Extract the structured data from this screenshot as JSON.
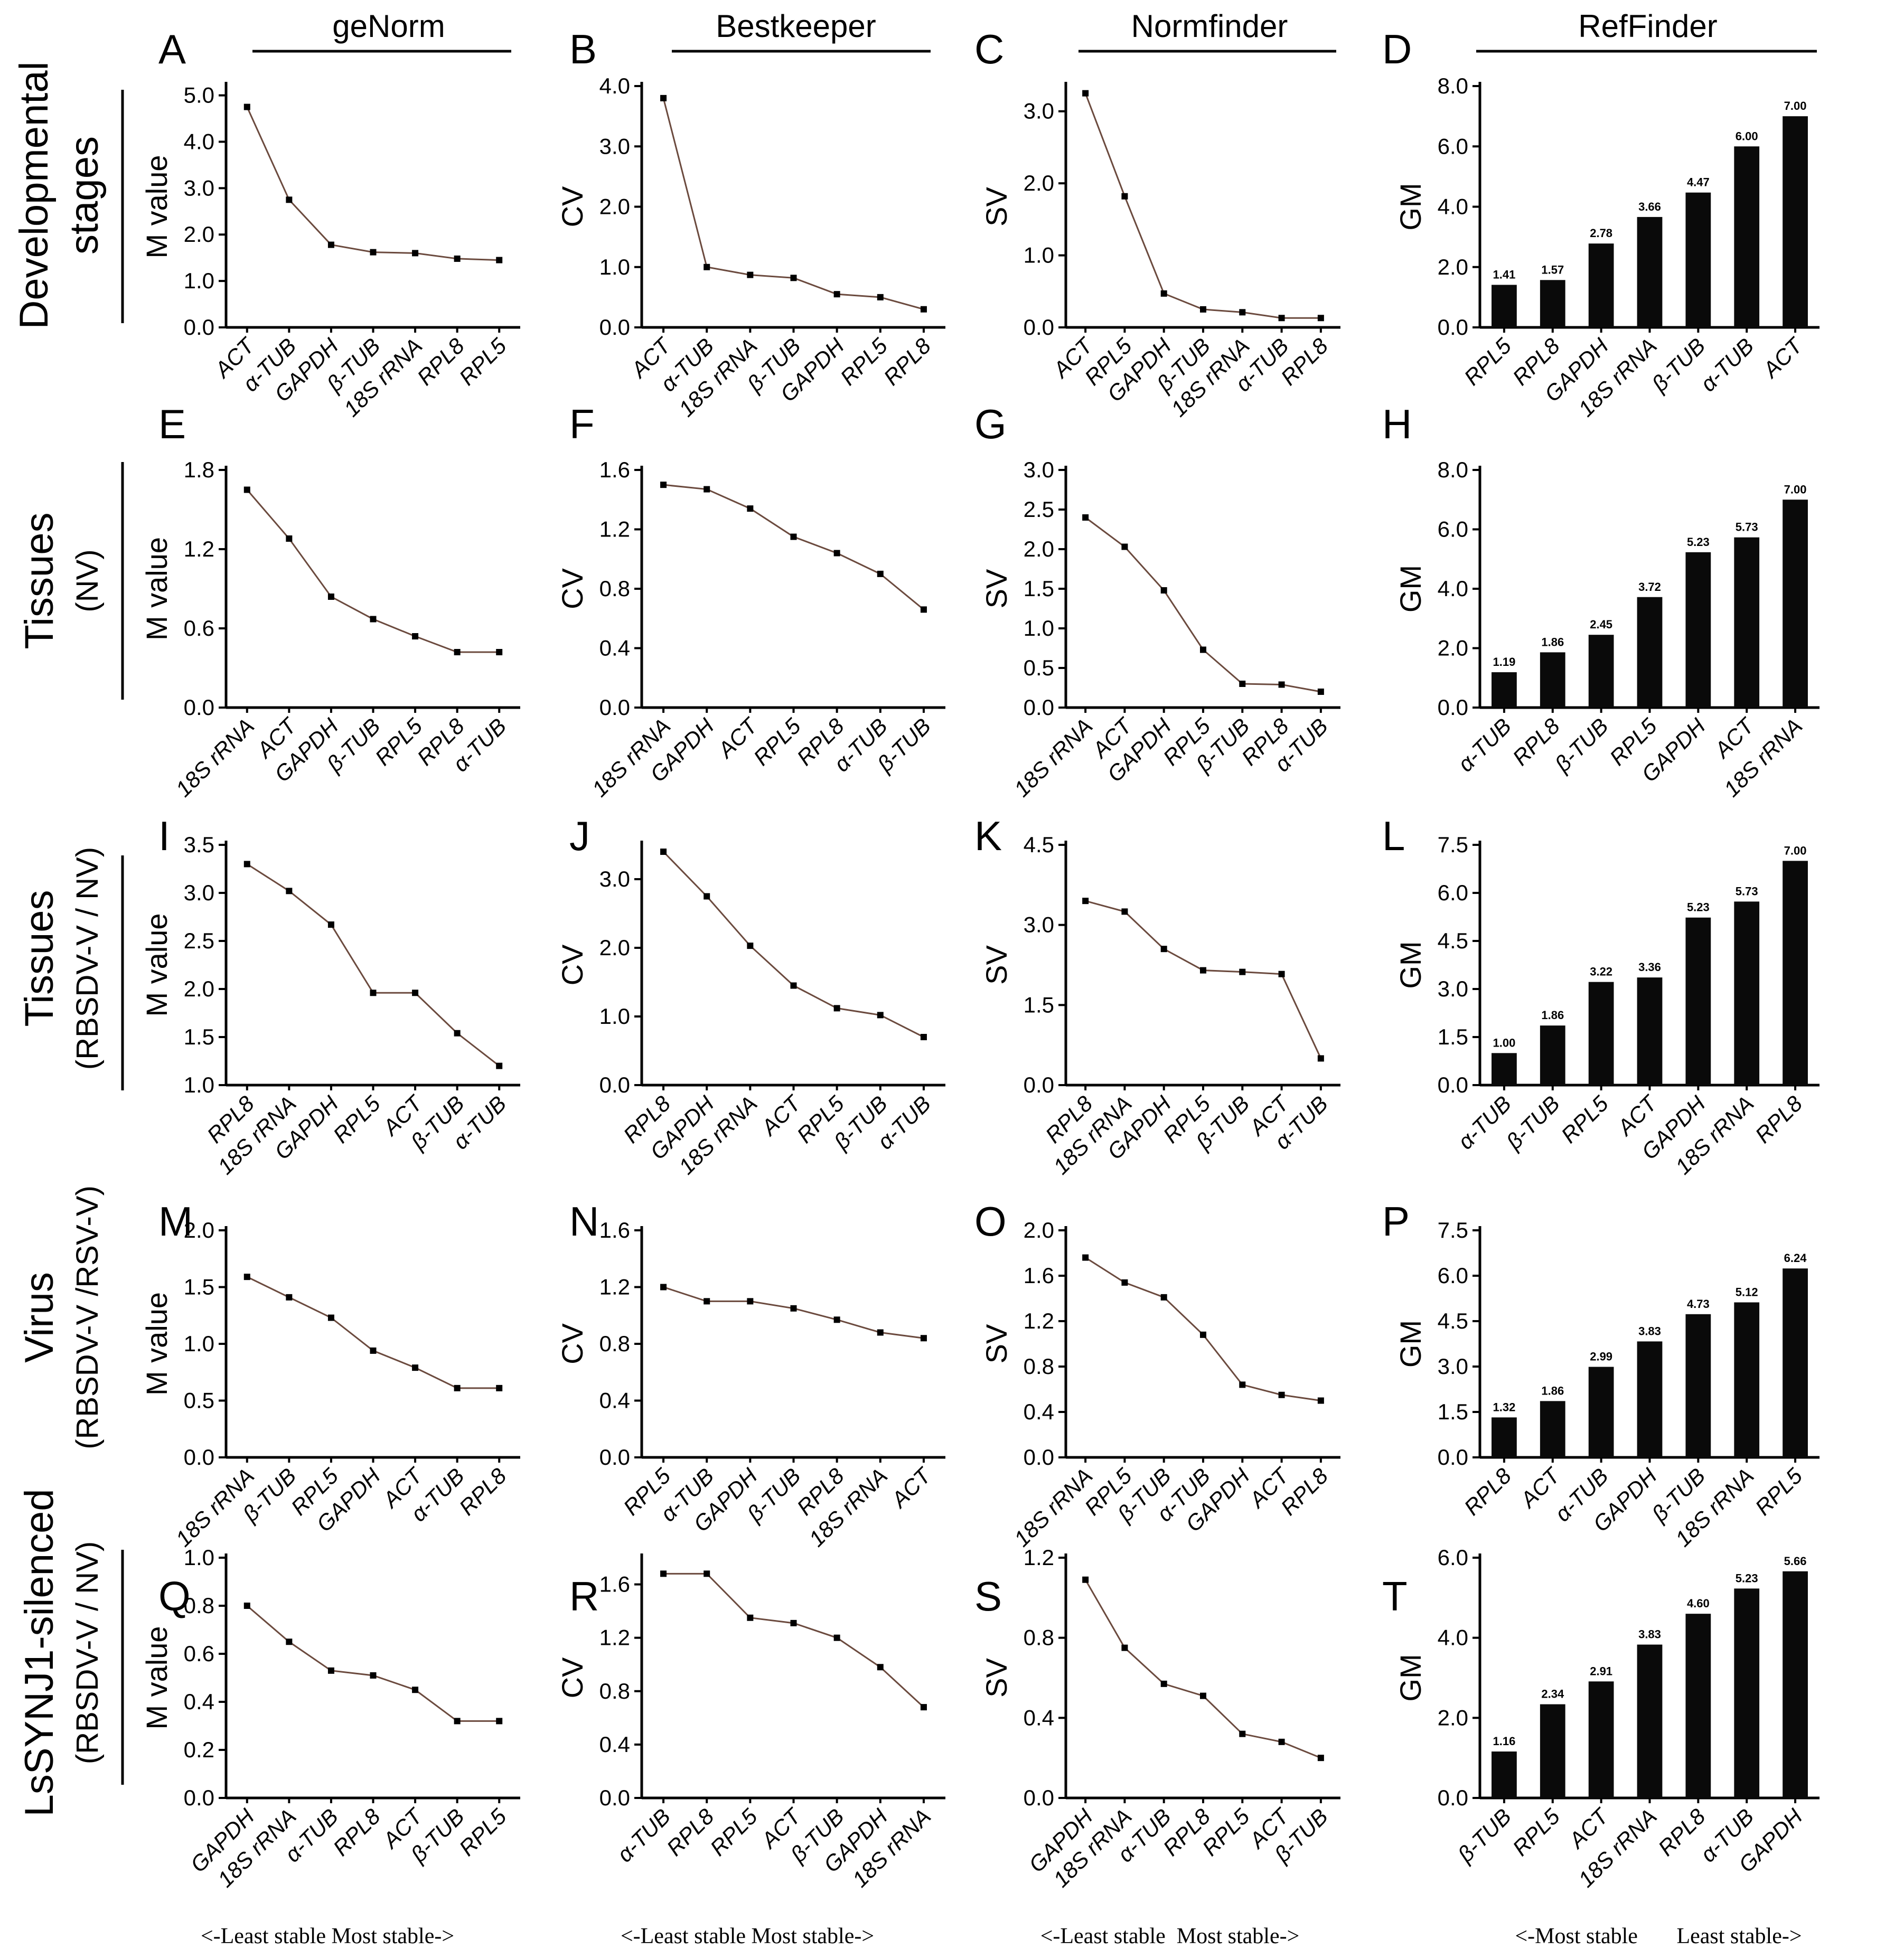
{
  "columns": [
    {
      "title": "geNorm"
    },
    {
      "title": "Bestkeeper"
    },
    {
      "title": "Normfinder"
    },
    {
      "title": "RefFinder"
    }
  ],
  "rows": [
    {
      "title": "Developmental",
      "subtitle": "stages"
    },
    {
      "title": "Tissues",
      "subtitle": "(NV)"
    },
    {
      "title": "Tissues",
      "subtitle": "(RBSDV-V / NV)"
    },
    {
      "title": "Virus",
      "subtitle": "(RBSDV-V /RSV-V)"
    },
    {
      "title": "LsSYNJ1-silenced",
      "subtitle": "(RBSDV-V / NV)"
    }
  ],
  "footers": [
    "<-Least stable  Most stable->",
    "<-Least stable  Most stable->",
    "<-Least stable  Most stable->",
    "<-Most stable       Least stable->"
  ],
  "chart_data": [
    {
      "panel": "A",
      "type": "line",
      "ylabel": "M value",
      "ylim": [
        0,
        5.2
      ],
      "yticks": [
        "0.0",
        "1.0",
        "2.0",
        "3.0",
        "4.0",
        "5.0"
      ],
      "categories": [
        "ACT",
        "α-TUB",
        "GAPDH",
        "β-TUB",
        "18S rRNA",
        "RPL8",
        "RPL5"
      ],
      "values": [
        4.75,
        2.75,
        1.78,
        1.62,
        1.6,
        1.48,
        1.45
      ]
    },
    {
      "panel": "B",
      "type": "line",
      "ylabel": "CV",
      "ylim": [
        0,
        4.0
      ],
      "yticks": [
        "0.0",
        "1.0",
        "2.0",
        "3.0",
        "4.0"
      ],
      "categories": [
        "ACT",
        "α-TUB",
        "18S rRNA",
        "β-TUB",
        "GAPDH",
        "RPL5",
        "RPL8"
      ],
      "values": [
        3.8,
        1.0,
        0.87,
        0.82,
        0.55,
        0.5,
        0.3
      ]
    },
    {
      "panel": "C",
      "type": "line",
      "ylabel": "SV",
      "ylim": [
        0,
        3.35
      ],
      "yticks": [
        "0.0",
        "1.0",
        "2.0",
        "3.0"
      ],
      "categories": [
        "ACT",
        "RPL5",
        "GAPDH",
        "β-TUB",
        "18S rRNA",
        "α-TUB",
        "RPL8"
      ],
      "values": [
        3.25,
        1.82,
        0.47,
        0.25,
        0.21,
        0.13,
        0.13
      ]
    },
    {
      "panel": "D",
      "type": "bar",
      "ylabel": "GM",
      "ylim": [
        0,
        8.0
      ],
      "yticks": [
        "0.0",
        "2.0",
        "4.0",
        "6.0",
        "8.0"
      ],
      "categories": [
        "RPL5",
        "RPL8",
        "GAPDH",
        "18S rRNA",
        "β-TUB",
        "α-TUB",
        "ACT"
      ],
      "values": [
        1.41,
        1.57,
        2.78,
        3.66,
        4.47,
        6.0,
        7.0
      ],
      "labels": [
        "1.41",
        "1.57",
        "2.78",
        "3.66",
        "4.47",
        "6.00",
        "7.00"
      ]
    },
    {
      "panel": "E",
      "type": "line",
      "ylabel": "M value",
      "ylim": [
        0,
        1.8
      ],
      "yticks": [
        "0.0",
        "0.6",
        "1.2",
        "1.8"
      ],
      "categories": [
        "18S rRNA",
        "ACT",
        "GAPDH",
        "β-TUB",
        "RPL5",
        "RPL8",
        "α-TUB"
      ],
      "values": [
        1.65,
        1.28,
        0.84,
        0.67,
        0.54,
        0.42,
        0.42
      ]
    },
    {
      "panel": "F",
      "type": "line",
      "ylabel": "CV",
      "ylim": [
        0,
        1.6
      ],
      "yticks": [
        "0.0",
        "0.4",
        "0.8",
        "1.2",
        "1.6"
      ],
      "categories": [
        "18S rRNA",
        "GAPDH",
        "ACT",
        "RPL5",
        "RPL8",
        "α-TUB",
        "β-TUB"
      ],
      "values": [
        1.5,
        1.47,
        1.34,
        1.15,
        1.04,
        0.9,
        0.66
      ]
    },
    {
      "panel": "G",
      "type": "line",
      "ylabel": "SV",
      "ylim": [
        0,
        3.0
      ],
      "yticks": [
        "0.0",
        "0.5",
        "1.0",
        "1.5",
        "2.0",
        "2.5",
        "3.0"
      ],
      "categories": [
        "18S rRNA",
        "ACT",
        "GAPDH",
        "RPL5",
        "β-TUB",
        "RPL8",
        "α-TUB"
      ],
      "values": [
        2.4,
        2.03,
        1.48,
        0.73,
        0.3,
        0.29,
        0.2
      ]
    },
    {
      "panel": "H",
      "type": "bar",
      "ylabel": "GM",
      "ylim": [
        0,
        8.0
      ],
      "yticks": [
        "0.0",
        "2.0",
        "4.0",
        "6.0",
        "8.0"
      ],
      "categories": [
        "α-TUB",
        "RPL8",
        "β-TUB",
        "RPL5",
        "GAPDH",
        "ACT",
        "18S rRNA"
      ],
      "values": [
        1.19,
        1.86,
        2.45,
        3.72,
        5.23,
        5.73,
        7.0
      ],
      "labels": [
        "1.19",
        "1.86",
        "2.45",
        "3.72",
        "5.23",
        "5.73",
        "7.00"
      ]
    },
    {
      "panel": "I",
      "type": "line",
      "ylabel": "M value",
      "ylim": [
        1.0,
        3.5
      ],
      "yticks": [
        "1.0",
        "1.5",
        "2.0",
        "2.5",
        "3.0",
        "3.5"
      ],
      "categories": [
        "RPL8",
        "18S rRNA",
        "GAPDH",
        "RPL5",
        "ACT",
        "β-TUB",
        "α-TUB"
      ],
      "values": [
        3.3,
        3.02,
        2.67,
        1.96,
        1.96,
        1.54,
        1.2
      ]
    },
    {
      "panel": "J",
      "type": "line",
      "ylabel": "CV",
      "ylim": [
        0,
        3.5
      ],
      "yticks": [
        "0.0",
        "1.0",
        "2.0",
        "3.0"
      ],
      "categories": [
        "RPL8",
        "GAPDH",
        "18S rRNA",
        "ACT",
        "RPL5",
        "β-TUB",
        "α-TUB"
      ],
      "values": [
        3.4,
        2.75,
        2.03,
        1.45,
        1.12,
        1.02,
        0.7
      ]
    },
    {
      "panel": "K",
      "type": "line",
      "ylabel": "SV",
      "ylim": [
        0,
        4.5
      ],
      "yticks": [
        "0.0",
        "1.5",
        "3.0",
        "4.5"
      ],
      "categories": [
        "RPL8",
        "18S rRNA",
        "GAPDH",
        "RPL5",
        "β-TUB",
        "ACT",
        "α-TUB"
      ],
      "values": [
        3.45,
        3.25,
        2.55,
        2.15,
        2.12,
        2.08,
        0.5
      ]
    },
    {
      "panel": "L",
      "type": "bar",
      "ylabel": "GM",
      "ylim": [
        0,
        7.5
      ],
      "yticks": [
        "0.0",
        "1.5",
        "3.0",
        "4.5",
        "6.0",
        "7.5"
      ],
      "categories": [
        "α-TUB",
        "β-TUB",
        "RPL5",
        "ACT",
        "GAPDH",
        "18S rRNA",
        "RPL8"
      ],
      "values": [
        1.0,
        1.86,
        3.22,
        3.36,
        5.23,
        5.73,
        7.0
      ],
      "labels": [
        "1.00",
        "1.86",
        "3.22",
        "3.36",
        "5.23",
        "5.73",
        "7.00"
      ]
    },
    {
      "panel": "M",
      "type": "line",
      "ylabel": "M value",
      "ylim": [
        0,
        2.0
      ],
      "yticks": [
        "0.0",
        "0.5",
        "1.0",
        "1.5",
        "2.0"
      ],
      "categories": [
        "18S rRNA",
        "β-TUB",
        "RPL5",
        "GAPDH",
        "ACT",
        "α-TUB",
        "RPL8"
      ],
      "values": [
        1.59,
        1.41,
        1.23,
        0.94,
        0.79,
        0.61,
        0.61
      ]
    },
    {
      "panel": "N",
      "type": "line",
      "ylabel": "CV",
      "ylim": [
        0,
        1.6
      ],
      "yticks": [
        "0.0",
        "0.4",
        "0.8",
        "1.2",
        "1.6"
      ],
      "categories": [
        "RPL5",
        "α-TUB",
        "GAPDH",
        "β-TUB",
        "RPL8",
        "18S rRNA",
        "ACT"
      ],
      "values": [
        1.2,
        1.1,
        1.1,
        1.05,
        0.97,
        0.88,
        0.84
      ]
    },
    {
      "panel": "O",
      "type": "line",
      "ylabel": "SV",
      "ylim": [
        0,
        2.0
      ],
      "yticks": [
        "0.0",
        "0.4",
        "0.8",
        "1.2",
        "1.6",
        "2.0"
      ],
      "categories": [
        "18S rRNA",
        "RPL5",
        "β-TUB",
        "α-TUB",
        "GAPDH",
        "ACT",
        "RPL8"
      ],
      "values": [
        1.76,
        1.54,
        1.41,
        1.08,
        0.64,
        0.55,
        0.5
      ]
    },
    {
      "panel": "P",
      "type": "bar",
      "ylabel": "GM",
      "ylim": [
        0,
        7.5
      ],
      "yticks": [
        "0.0",
        "1.5",
        "3.0",
        "4.5",
        "6.0",
        "7.5"
      ],
      "categories": [
        "RPL8",
        "ACT",
        "α-TUB",
        "GAPDH",
        "β-TUB",
        "18S rRNA",
        "RPL5"
      ],
      "values": [
        1.32,
        1.86,
        2.99,
        3.83,
        4.73,
        5.12,
        6.24
      ],
      "labels": [
        "1.32",
        "1.86",
        "2.99",
        "3.83",
        "4.73",
        "5.12",
        "6.24"
      ]
    },
    {
      "panel": "Q",
      "type": "line",
      "ylabel": "M value",
      "ylim": [
        0,
        1.0
      ],
      "yticks": [
        "0.0",
        "0.2",
        "0.4",
        "0.6",
        "0.8",
        "1.0"
      ],
      "categories": [
        "GAPDH",
        "18S rRNA",
        "α-TUB",
        "RPL8",
        "ACT",
        "β-TUB",
        "RPL5"
      ],
      "values": [
        0.8,
        0.65,
        0.53,
        0.51,
        0.45,
        0.32,
        0.32
      ]
    },
    {
      "panel": "R",
      "type": "line",
      "ylabel": "CV",
      "ylim": [
        0,
        1.8
      ],
      "yticks": [
        "0.0",
        "0.4",
        "0.8",
        "1.2",
        "1.6"
      ],
      "categories": [
        "α-TUB",
        "RPL8",
        "RPL5",
        "ACT",
        "β-TUB",
        "GAPDH",
        "18S rRNA"
      ],
      "values": [
        1.68,
        1.68,
        1.35,
        1.31,
        1.2,
        0.98,
        0.68
      ]
    },
    {
      "panel": "S",
      "type": "line",
      "ylabel": "SV",
      "ylim": [
        0,
        1.2
      ],
      "yticks": [
        "0.0",
        "0.4",
        "0.8",
        "1.2"
      ],
      "categories": [
        "GAPDH",
        "18S rRNA",
        "α-TUB",
        "RPL8",
        "RPL5",
        "ACT",
        "β-TUB"
      ],
      "values": [
        1.09,
        0.75,
        0.57,
        0.51,
        0.32,
        0.28,
        0.2
      ]
    },
    {
      "panel": "T",
      "type": "bar",
      "ylabel": "GM",
      "ylim": [
        0,
        6.0
      ],
      "yticks": [
        "0.0",
        "2.0",
        "4.0",
        "6.0"
      ],
      "categories": [
        "β-TUB",
        "RPL5",
        "ACT",
        "18S rRNA",
        "RPL8",
        "α-TUB",
        "GAPDH"
      ],
      "values": [
        1.16,
        2.34,
        2.91,
        3.83,
        4.6,
        5.23,
        5.66
      ],
      "labels": [
        "1.16",
        "2.34",
        "2.91",
        "3.83",
        "4.60",
        "5.23",
        "5.66"
      ]
    }
  ]
}
